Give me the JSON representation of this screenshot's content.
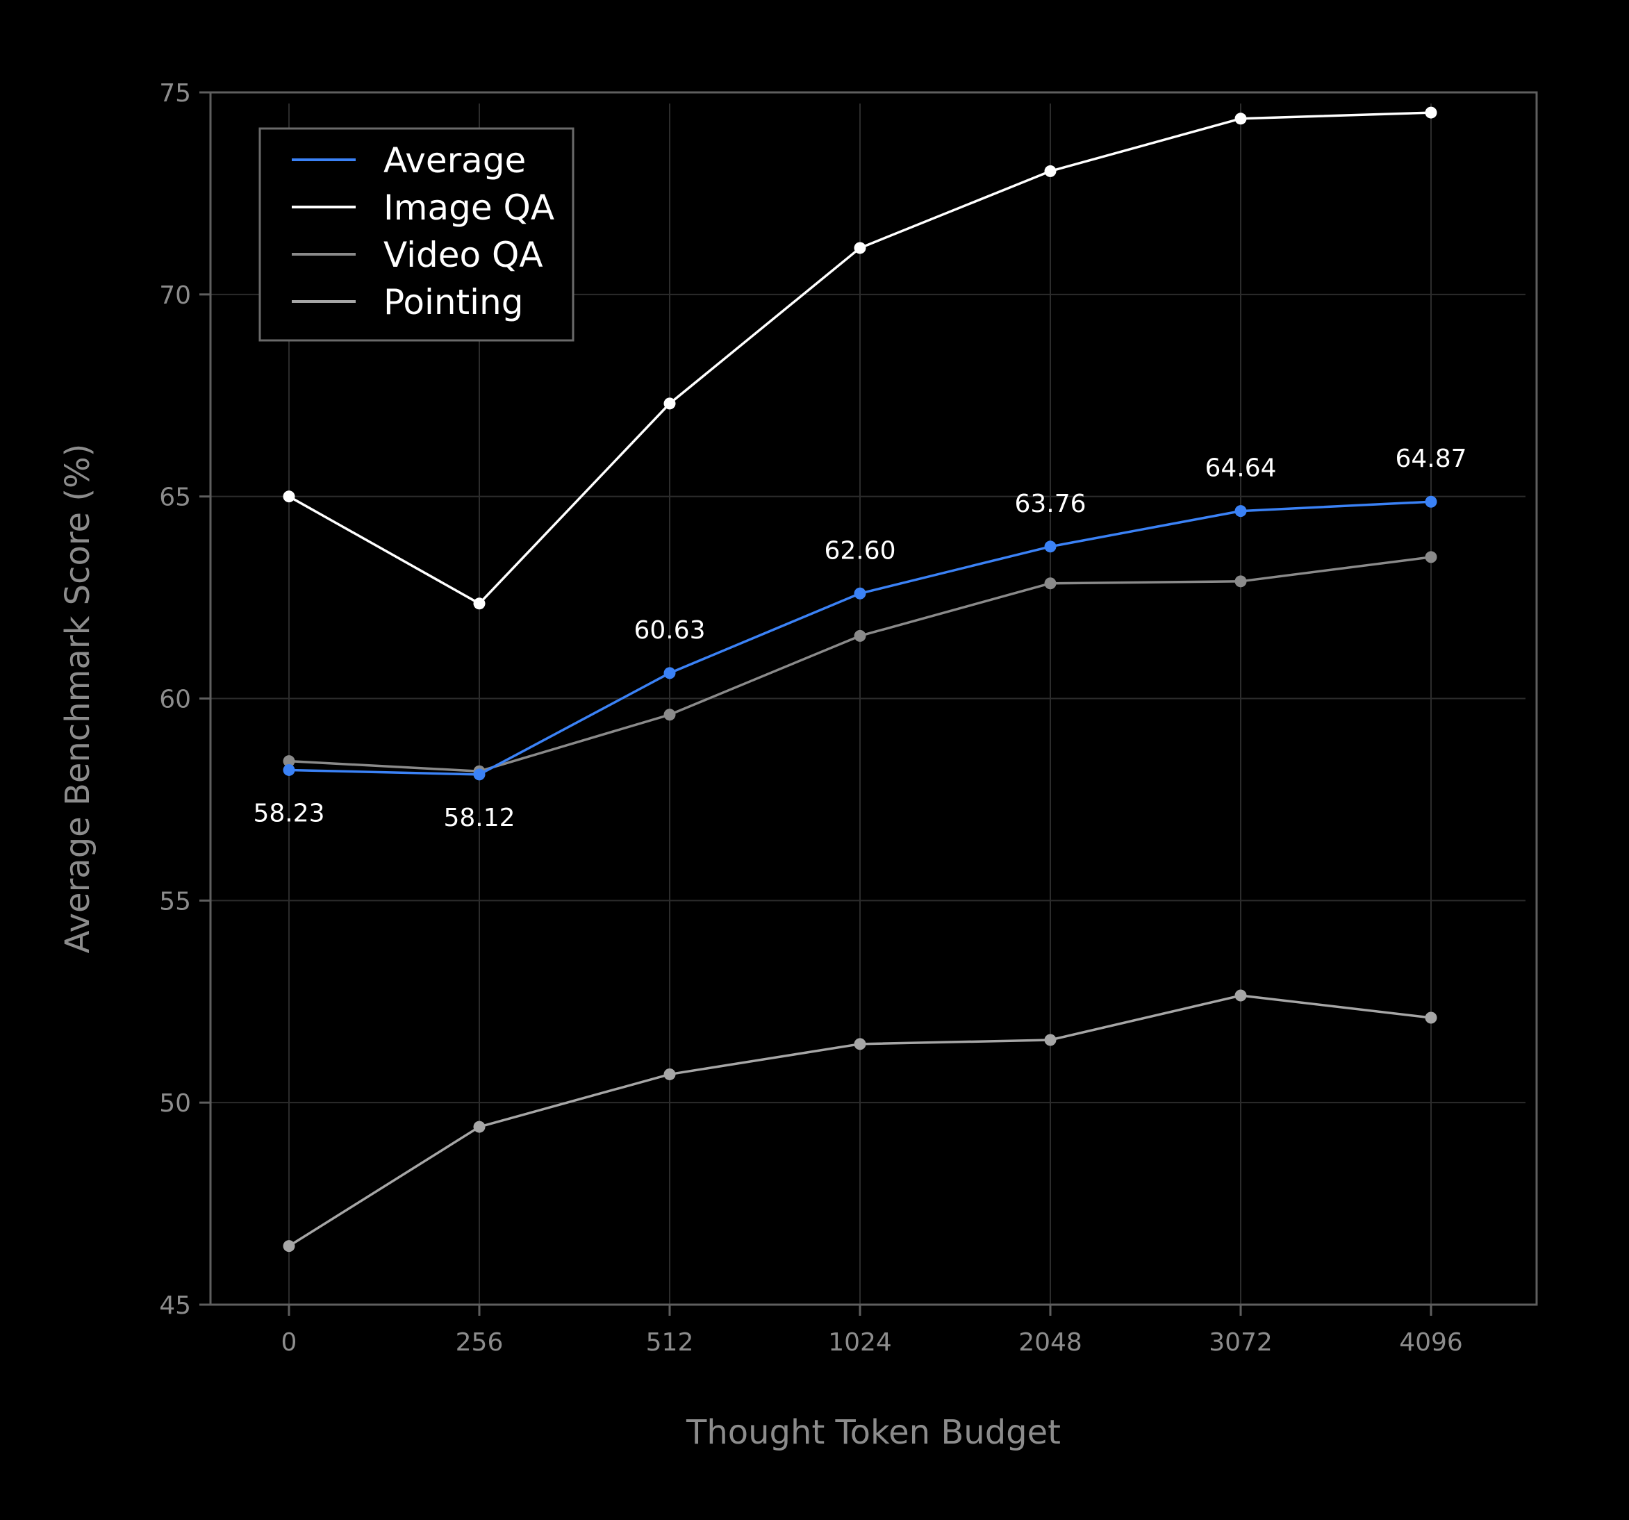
{
  "chart_data": {
    "type": "line",
    "title": "",
    "xlabel": "Thought Token Budget",
    "ylabel": "Average Benchmark Score (%)",
    "categories": [
      "0",
      "256",
      "512",
      "1024",
      "2048",
      "3072",
      "4096"
    ],
    "ylim": [
      45,
      75
    ],
    "yticks": [
      45,
      50,
      55,
      60,
      65,
      70,
      75
    ],
    "grid": true,
    "legend_position": "top-left",
    "series": [
      {
        "name": "Average",
        "color": "#3b82f6",
        "values": [
          58.23,
          58.12,
          60.63,
          62.6,
          63.76,
          64.64,
          64.87
        ],
        "point_labels": [
          "58.23",
          "58.12",
          "60.63",
          "62.60",
          "63.76",
          "64.64",
          "64.87"
        ]
      },
      {
        "name": "Image QA",
        "color": "#ffffff",
        "values": [
          65.0,
          62.35,
          67.3,
          71.15,
          73.05,
          74.35,
          74.5
        ]
      },
      {
        "name": "Video QA",
        "color": "#8a8a8a",
        "values": [
          58.45,
          58.2,
          59.6,
          61.55,
          62.85,
          62.9,
          63.5
        ]
      },
      {
        "name": "Pointing",
        "color": "#a6a6a6",
        "values": [
          46.45,
          49.4,
          50.7,
          51.45,
          51.55,
          52.65,
          52.1
        ]
      }
    ]
  }
}
